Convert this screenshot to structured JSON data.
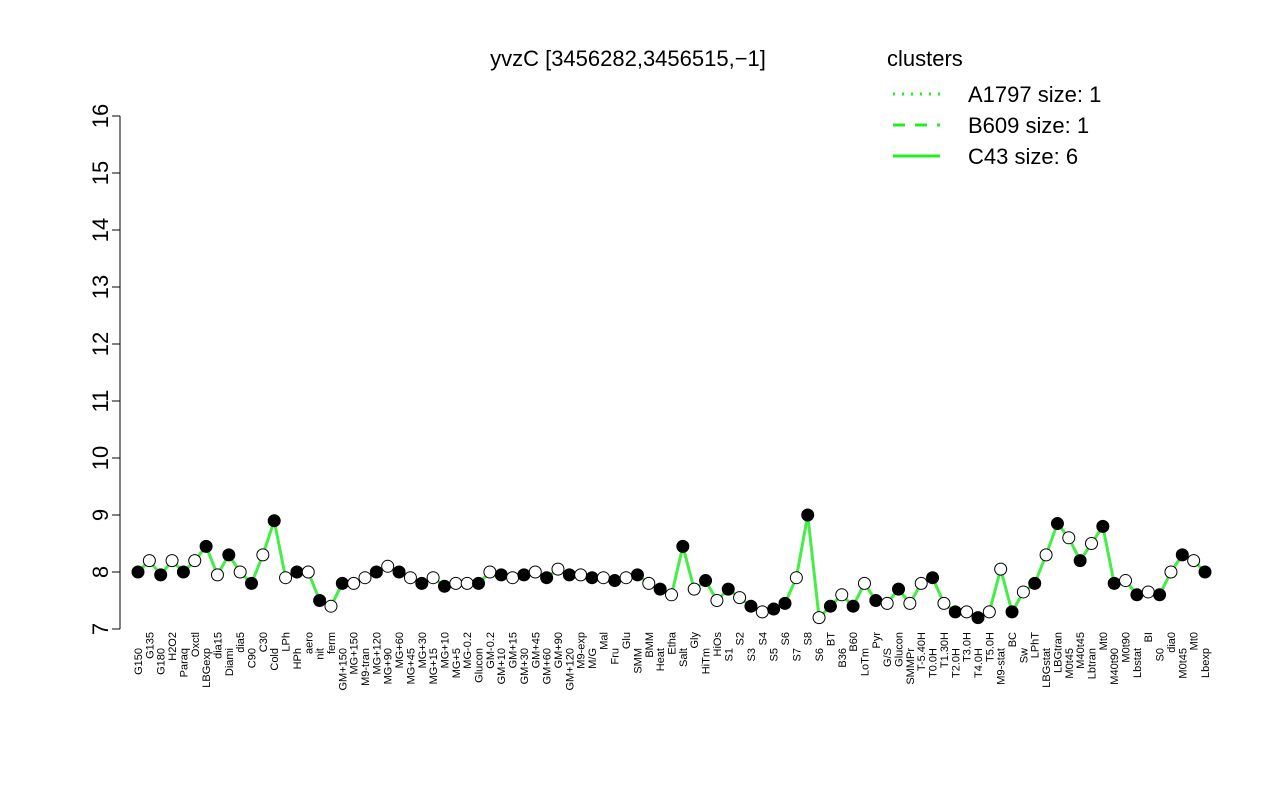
{
  "chart_data": {
    "type": "scatter",
    "title": "yvzC [3456282,3456515,−1]",
    "legend_title": "clusters",
    "legend": [
      {
        "name": "A1797 size: 1",
        "dash": "dotted"
      },
      {
        "name": "B609 size: 1",
        "dash": "dashed"
      },
      {
        "name": "C43 size: 6",
        "dash": "solid"
      }
    ],
    "legend_color": "#22ee22",
    "line_color": "#44ee44",
    "ylim": [
      7,
      16
    ],
    "yticks": [
      7,
      8,
      9,
      10,
      11,
      12,
      13,
      14,
      15,
      16
    ],
    "categories": [
      "G150",
      "G135",
      "G180",
      "H2O2",
      "Paraq",
      "Oxctl",
      "LBGexp",
      "dia15",
      "Diami",
      "dia5",
      "C90",
      "C30",
      "Cold",
      "LPh",
      "HPh",
      "aero",
      "nit",
      "ferm",
      "GM+150",
      "MG+150",
      "M9-tran",
      "MG+120",
      "MG+90",
      "MG+60",
      "MG+45",
      "MG+30",
      "MG+15",
      "MG+10",
      "MG+5",
      "MG-0.2",
      "Glucon",
      "GM-0.2",
      "GM+10",
      "GM+15",
      "GM+30",
      "GM+45",
      "GM+60",
      "GM+90",
      "GM+120",
      "M9-exp",
      "M/G",
      "Mal",
      "Fru",
      "Glu",
      "SMM",
      "BMM",
      "Heat",
      "Etha",
      "Salt",
      "Gly",
      "HiTm",
      "HiOs",
      "S1",
      "S2",
      "S3",
      "S4",
      "S5",
      "S6",
      "S7",
      "S8",
      "S6",
      "BT",
      "B36",
      "B60",
      "LoTm",
      "Pyr",
      "G/S",
      "Glucon",
      "SMMPr",
      "T-5.40H",
      "T0.0H",
      "T1.30H",
      "T2.0H",
      "T3.0H",
      "T4.0H",
      "T5.0H",
      "M9-stat",
      "BC",
      "Sw",
      "LPhT",
      "LBGstat",
      "LBGtran",
      "M0t45",
      "M40t45",
      "Lbtran",
      "Mt0",
      "M40t90",
      "M0t90",
      "Lbstat",
      "BI",
      "S0",
      "dia0",
      "M0t45",
      "Mt0",
      "Lbexp"
    ],
    "values": [
      8.0,
      8.2,
      7.95,
      8.2,
      8.0,
      8.2,
      8.45,
      7.95,
      8.3,
      8.0,
      7.8,
      8.3,
      8.9,
      7.9,
      8.0,
      8.0,
      7.5,
      7.4,
      7.8,
      7.8,
      7.9,
      8.0,
      8.1,
      8.0,
      7.9,
      7.8,
      7.9,
      7.75,
      7.8,
      7.8,
      7.8,
      8.0,
      7.95,
      7.9,
      7.95,
      8.0,
      7.9,
      8.05,
      7.95,
      7.95,
      7.9,
      7.9,
      7.85,
      7.9,
      7.95,
      7.8,
      7.7,
      7.6,
      8.45,
      7.7,
      7.85,
      7.5,
      7.7,
      7.55,
      7.4,
      7.3,
      7.35,
      7.45,
      7.9,
      9.0,
      7.2,
      7.4,
      7.6,
      7.4,
      7.8,
      7.5,
      7.45,
      7.7,
      7.45,
      7.8,
      7.9,
      7.45,
      7.3,
      7.3,
      7.2,
      7.3,
      8.05,
      7.3,
      7.65,
      7.8,
      8.3,
      8.85,
      8.6,
      8.2,
      8.5,
      8.8,
      7.8,
      7.85,
      7.6,
      7.65,
      7.6,
      8.0,
      8.3,
      8.2,
      8.0
    ],
    "filled": [
      true,
      false,
      true,
      false,
      true,
      false,
      true,
      false,
      true,
      false,
      true,
      false,
      true,
      false,
      true,
      false,
      true,
      false,
      true,
      false,
      false,
      true,
      false,
      true,
      false,
      true,
      false,
      true,
      false,
      false,
      true,
      false,
      true,
      false,
      true,
      false,
      true,
      false,
      true,
      false,
      true,
      false,
      true,
      false,
      true,
      false,
      true,
      false,
      true,
      false,
      true,
      false,
      true,
      false,
      true,
      false,
      true,
      true,
      false,
      true,
      false,
      true,
      false,
      true,
      false,
      true,
      false,
      true,
      false,
      false,
      true,
      false,
      true,
      false,
      true,
      false,
      false,
      true,
      false,
      true,
      false,
      true,
      false,
      true,
      false,
      true,
      true,
      false,
      true,
      false,
      true,
      false,
      true,
      false,
      true
    ]
  }
}
